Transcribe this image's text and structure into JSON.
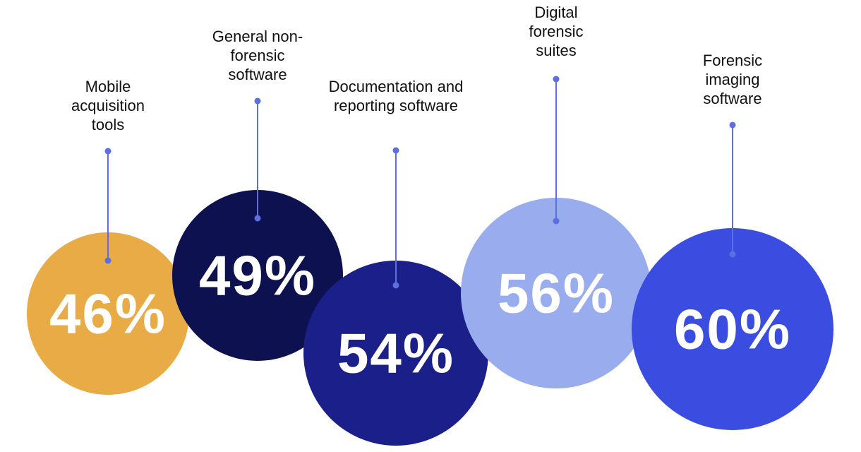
{
  "chart_data": {
    "type": "bubble",
    "categories": [
      "Mobile acquisition tools",
      "General non-forensic software",
      "Documentation and reporting software",
      "Digital forensic suites",
      "Forensic imaging software"
    ],
    "values": [
      46,
      49,
      54,
      56,
      60
    ],
    "value_labels": [
      "46%",
      "49%",
      "54%",
      "56%",
      "60%"
    ],
    "colors": [
      "#e8ab45",
      "#0d1150",
      "#1a1f8a",
      "#98acee",
      "#3a4de0"
    ]
  }
}
